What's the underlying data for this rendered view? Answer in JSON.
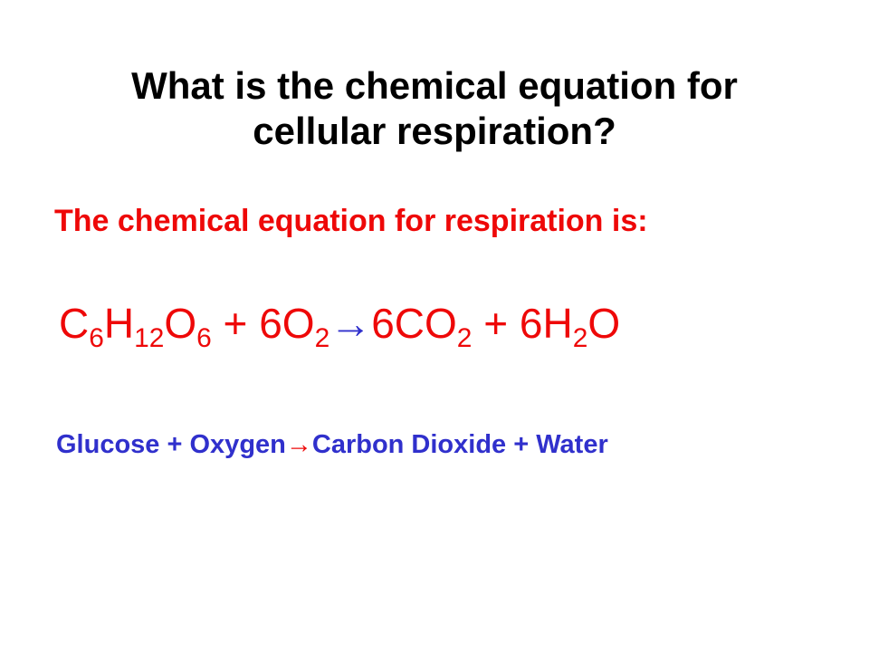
{
  "title": {
    "line1": "What is the chemical equation for",
    "line2": "cellular respiration?",
    "color": "#000000",
    "fontsize": 42
  },
  "answer_intro": {
    "text": "The chemical equation for respiration is:",
    "color": "#ee0808",
    "fontsize": 34
  },
  "equation": {
    "color_main": "#ee0808",
    "color_arrow": "#3030cc",
    "fontsize": 46,
    "reactant1": {
      "element1": "C",
      "sub1": "6",
      "element2": "H",
      "sub2": "12",
      "element3": "O",
      "sub3": "6"
    },
    "plus1": " + ",
    "reactant2": {
      "coef": "6",
      "element": "O",
      "sub": "2"
    },
    "arrow": " → ",
    "product1": {
      "coef": "6",
      "element1": "C",
      "element2": "O",
      "sub": "2"
    },
    "plus2": " + ",
    "product2": {
      "coef": "6",
      "element1": "H",
      "sub": "2",
      "element2": "O"
    }
  },
  "word_equation": {
    "color_text": "#3030cc",
    "color_arrow": "#ee0808",
    "fontsize": 29,
    "reactant1": "Glucose",
    "plus1": " + ",
    "reactant2": "Oxygen",
    "arrow": " → ",
    "product1": "Carbon Dioxide",
    "plus2": " + ",
    "product2": "Water"
  },
  "background_color": "#ffffff"
}
